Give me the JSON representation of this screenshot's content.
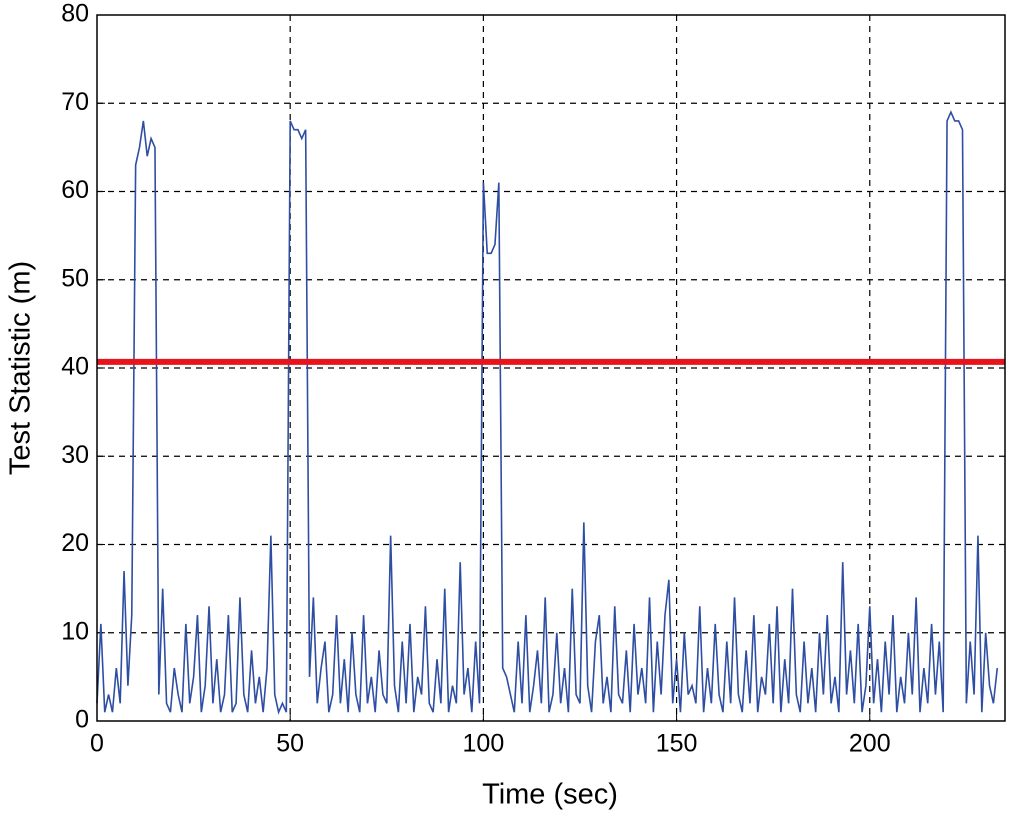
{
  "chart_data": {
    "type": "line",
    "xlabel": "Time (sec)",
    "ylabel": "Test Statistic (m)",
    "xlim": [
      0,
      235
    ],
    "ylim": [
      0,
      80
    ],
    "xticks": [
      0,
      50,
      100,
      150,
      200
    ],
    "yticks": [
      0,
      10,
      20,
      30,
      40,
      50,
      60,
      70,
      80
    ],
    "grid": true,
    "threshold": 40.7,
    "threshold_color": "#e8141b",
    "series": [
      {
        "color": "#2e4ea3",
        "x": [
          0,
          1,
          2,
          3,
          4,
          5,
          6,
          7,
          8,
          9,
          10,
          11,
          12,
          13,
          14,
          15,
          16,
          17,
          18,
          19,
          20,
          21,
          22,
          23,
          24,
          25,
          26,
          27,
          28,
          29,
          30,
          31,
          32,
          33,
          34,
          35,
          36,
          37,
          38,
          39,
          40,
          41,
          42,
          43,
          44,
          45,
          46,
          47,
          48,
          49,
          50,
          51,
          52,
          53,
          54,
          55,
          56,
          57,
          58,
          59,
          60,
          61,
          62,
          63,
          64,
          65,
          66,
          67,
          68,
          69,
          70,
          71,
          72,
          73,
          74,
          75,
          76,
          77,
          78,
          79,
          80,
          81,
          82,
          83,
          84,
          85,
          86,
          87,
          88,
          89,
          90,
          91,
          92,
          93,
          94,
          95,
          96,
          97,
          98,
          99,
          100,
          101,
          102,
          103,
          104,
          105,
          106,
          107,
          108,
          109,
          110,
          111,
          112,
          113,
          114,
          115,
          116,
          117,
          118,
          119,
          120,
          121,
          122,
          123,
          124,
          125,
          126,
          127,
          128,
          129,
          130,
          131,
          132,
          133,
          134,
          135,
          136,
          137,
          138,
          139,
          140,
          141,
          142,
          143,
          144,
          145,
          146,
          147,
          148,
          149,
          150,
          151,
          152,
          153,
          154,
          155,
          156,
          157,
          158,
          159,
          160,
          161,
          162,
          163,
          164,
          165,
          166,
          167,
          168,
          169,
          170,
          171,
          172,
          173,
          174,
          175,
          176,
          177,
          178,
          179,
          180,
          181,
          182,
          183,
          184,
          185,
          186,
          187,
          188,
          189,
          190,
          191,
          192,
          193,
          194,
          195,
          196,
          197,
          198,
          199,
          200,
          201,
          202,
          203,
          204,
          205,
          206,
          207,
          208,
          209,
          210,
          211,
          212,
          213,
          214,
          215,
          216,
          217,
          218,
          219,
          220,
          221,
          222,
          223,
          224,
          225,
          226,
          227,
          228,
          229,
          230,
          231,
          232,
          233
        ],
        "values": [
          2,
          11,
          1,
          3,
          1,
          6,
          2,
          17,
          4,
          12,
          63,
          65,
          68,
          64,
          66,
          65,
          3,
          15,
          2,
          1,
          6,
          3,
          1,
          11,
          2,
          5,
          12,
          1,
          4,
          13,
          2,
          7,
          1,
          3,
          12,
          1,
          2,
          14,
          3,
          1,
          8,
          2,
          5,
          1,
          6,
          21,
          3,
          1,
          2,
          1,
          68,
          67,
          67,
          66,
          67,
          5,
          14,
          2,
          6,
          9,
          1,
          3,
          12,
          2,
          7,
          1,
          10,
          3,
          1,
          12,
          2,
          5,
          1,
          8,
          3,
          2,
          21,
          4,
          1,
          9,
          2,
          11,
          1,
          5,
          3,
          13,
          2,
          1,
          7,
          2,
          15,
          1,
          4,
          2,
          18,
          3,
          6,
          1,
          9,
          2,
          61,
          53,
          53,
          54,
          61,
          6,
          5,
          3,
          1,
          9,
          2,
          12,
          1,
          4,
          8,
          2,
          14,
          1,
          3,
          10,
          2,
          6,
          1,
          15,
          3,
          2,
          22.5,
          4,
          1,
          9,
          12,
          2,
          5,
          1,
          13,
          3,
          2,
          8,
          1,
          11,
          3,
          6,
          2,
          14,
          1,
          9,
          3,
          12,
          16,
          2,
          7,
          1,
          10,
          3,
          4,
          2,
          13,
          1,
          6,
          2,
          11,
          3,
          1,
          9,
          2,
          14,
          3,
          1,
          8,
          2,
          12,
          1,
          5,
          3,
          11,
          2,
          13,
          1,
          7,
          2,
          15,
          3,
          1,
          9,
          2,
          6,
          1,
          10,
          3,
          12,
          2,
          5,
          1,
          18,
          3,
          8,
          2,
          11,
          1,
          4,
          13,
          2,
          7,
          1,
          9,
          3,
          12,
          1,
          5,
          2,
          10,
          3,
          14,
          1,
          6,
          2,
          11,
          3,
          9,
          1,
          68,
          69,
          68,
          68,
          67,
          2,
          9,
          3,
          21,
          1,
          10,
          4,
          2,
          6
        ]
      }
    ]
  }
}
